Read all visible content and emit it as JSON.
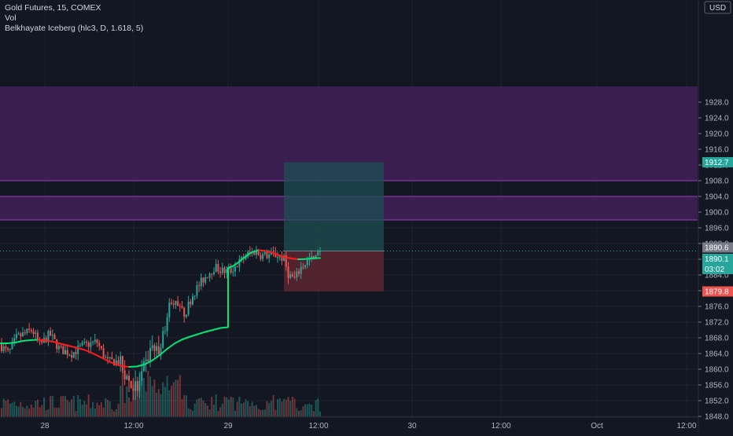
{
  "legend": {
    "symbol": "Gold Futures, 15, COMEX",
    "vol": "Vol",
    "indicator": "Belkhayate Iceberg (hlc3, D, 1.618, 5)"
  },
  "currency": "USD",
  "price_labels": {
    "target": "1912.7",
    "stop": "1879.8",
    "last_gray": "1890.6",
    "last": "1890.1",
    "countdown": "03:02"
  },
  "colors": {
    "background": "#131722",
    "purple_zone": "#3b1f52",
    "zone_line": "#9b3fb8",
    "up_candle": "#26a69a",
    "down_candle": "#ef5350",
    "ma_up": "#00e676",
    "ma_down": "#ff1a1a",
    "target_box": "#1d4f52",
    "stop_box": "#5c2630",
    "target_label": "#26a69a",
    "stop_label": "#ef5350",
    "last_gray": "#787b86"
  },
  "chart_data": {
    "type": "candlestick",
    "title": "Gold Futures, 15, COMEX",
    "y_axis": {
      "ylim": [
        1847,
        1932
      ],
      "ticks": [
        1848.0,
        1852.0,
        1856.0,
        1860.0,
        1864.0,
        1868.0,
        1872.0,
        1876.0,
        1880.0,
        1884.0,
        1888.0,
        1892.0,
        1896.0,
        1900.0,
        1904.0,
        1908.0,
        1912.0,
        1916.0,
        1920.0,
        1924.0,
        1928.0
      ],
      "position": "right",
      "grid": true
    },
    "x_axis": {
      "tick_labels": [
        "28",
        "12:00",
        "29",
        "12:00",
        "30",
        "12:00",
        "Oct",
        "12:00"
      ],
      "grid": true
    },
    "zones": [
      {
        "low": 1908.0,
        "high": 1932.0
      },
      {
        "low": 1898.0,
        "high": 1904.0
      }
    ],
    "position_tool": {
      "entry": 1890.1,
      "target": 1912.7,
      "stop": 1879.8
    },
    "last_price": 1890.1,
    "indicator": "Belkhayate Iceberg (hlc3, D, 1.618, 5)",
    "indicator_line": {
      "segment1": [
        1866.6,
        1866.6,
        1866.8,
        1867.2,
        1867.4,
        1867.5,
        1867.3,
        1867.0,
        1866.5,
        1866.0,
        1865.5,
        1865.0,
        1864.2,
        1863.3,
        1862.3,
        1861.4,
        1860.8,
        1860.6,
        1860.7,
        1861.2,
        1862.2,
        1863.6,
        1865.2,
        1866.6,
        1867.6,
        1868.3,
        1868.9,
        1869.5,
        1870.0,
        1870.5,
        1870.7
      ],
      "segment2": [
        1885.8,
        1886.2,
        1886.9,
        1887.8,
        1888.7,
        1889.5,
        1890.0,
        1890.3,
        1890.2,
        1890.0,
        1889.7,
        1889.3,
        1888.9,
        1888.5,
        1888.3,
        1888.1,
        1888.0,
        1888.0,
        1888.1,
        1888.2,
        1888.3,
        1888.3
      ]
    },
    "volume": {
      "note": "relative volume bars under price"
    }
  }
}
